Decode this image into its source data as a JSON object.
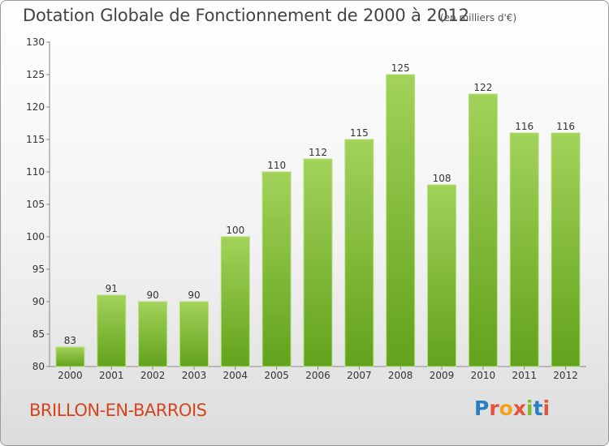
{
  "title": "Dotation Globale de Fonctionnement de 2000 à 2012",
  "unit_note": "(en milliers d'€)",
  "commune": "BRILLON-EN-BARROIS",
  "logo": {
    "letters": [
      "P",
      "r",
      "o",
      "x",
      "i",
      "t",
      "i"
    ],
    "colors": [
      "#2a7fc0",
      "#e5533b",
      "#f2a21a",
      "#e5533b",
      "#7dbb2f",
      "#2a7fc0",
      "#e5533b"
    ]
  },
  "colors": {
    "bar": "#7ab83a",
    "commune": "#d4451f"
  },
  "chart_data": {
    "type": "bar",
    "title": "Dotation Globale de Fonctionnement de 2000 à 2012",
    "xlabel": "",
    "ylabel": "",
    "categories": [
      "2000",
      "2001",
      "2002",
      "2003",
      "2004",
      "2005",
      "2006",
      "2007",
      "2008",
      "2009",
      "2010",
      "2011",
      "2012"
    ],
    "values": [
      83,
      91,
      90,
      90,
      100,
      110,
      112,
      115,
      125,
      108,
      122,
      116,
      116
    ],
    "ylim": [
      80,
      130
    ],
    "yticks": [
      80,
      85,
      90,
      95,
      100,
      105,
      110,
      115,
      120,
      125,
      130
    ],
    "grid": false,
    "legend": "none"
  }
}
